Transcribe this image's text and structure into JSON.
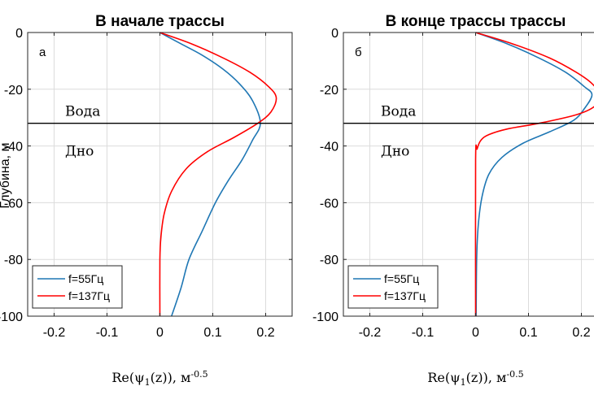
{
  "ylabel": "Глубина, м",
  "chart_data": [
    {
      "type": "line",
      "title": "В начале трассы",
      "panel_label": "а",
      "xlabel": "Re(ψ1(z)), м-0.5",
      "xlabel_parts": {
        "base": "Re(ψ",
        "sub": "1",
        "mid": "(z)), м",
        "sup": "-0.5"
      },
      "xlim": [
        -0.25,
        0.25
      ],
      "ylim": [
        -100,
        0
      ],
      "x_ticks": [
        -0.2,
        -0.1,
        0,
        0.1,
        0.2
      ],
      "x_tick_labels": [
        "-0.2",
        "-0.1",
        "0",
        "0.1",
        "0.2"
      ],
      "y_ticks": [
        0,
        -20,
        -40,
        -60,
        -80,
        -100
      ],
      "y_tick_labels": [
        "0",
        "-20",
        "-40",
        "-60",
        "-80",
        "-100"
      ],
      "grid": true,
      "legend_position": "bottom-left",
      "boundary": {
        "depth": -32,
        "upper_label": "Вода",
        "lower_label": "Дно"
      },
      "series": [
        {
          "name": "f=55Гц",
          "color": "#1f77b4",
          "points": [
            [
              0,
              0
            ],
            [
              0.04,
              -4
            ],
            [
              0.08,
              -8
            ],
            [
              0.12,
              -13
            ],
            [
              0.15,
              -18
            ],
            [
              0.175,
              -24
            ],
            [
              0.19,
              -32
            ],
            [
              0.175,
              -38
            ],
            [
              0.155,
              -45
            ],
            [
              0.13,
              -52
            ],
            [
              0.105,
              -60
            ],
            [
              0.08,
              -70
            ],
            [
              0.055,
              -80
            ],
            [
              0.04,
              -90
            ],
            [
              0.022,
              -100
            ]
          ]
        },
        {
          "name": "f=137Гц",
          "color": "#ff0000",
          "points": [
            [
              0,
              0
            ],
            [
              0.06,
              -4
            ],
            [
              0.12,
              -9
            ],
            [
              0.17,
              -14
            ],
            [
              0.205,
              -19
            ],
            [
              0.22,
              -23
            ],
            [
              0.21,
              -28
            ],
            [
              0.185,
              -32
            ],
            [
              0.14,
              -37
            ],
            [
              0.09,
              -42
            ],
            [
              0.05,
              -48
            ],
            [
              0.022,
              -56
            ],
            [
              0.008,
              -64
            ],
            [
              0.002,
              -72
            ],
            [
              0,
              -80
            ],
            [
              0,
              -100
            ]
          ]
        }
      ]
    },
    {
      "type": "line",
      "title": "В конце трассы трассы",
      "panel_label": "б",
      "xlabel": "Re(ψ1(z)), м-0.5",
      "xlabel_parts": {
        "base": "Re(ψ",
        "sub": "1",
        "mid": "(z)), м",
        "sup": "-0.5"
      },
      "xlim": [
        -0.25,
        0.25
      ],
      "ylim": [
        -100,
        0
      ],
      "x_ticks": [
        -0.2,
        -0.1,
        0,
        0.1,
        0.2
      ],
      "x_tick_labels": [
        "-0.2",
        "-0.1",
        "0",
        "0.1",
        "0.2"
      ],
      "y_ticks": [
        0,
        -20,
        -40,
        -60,
        -80,
        -100
      ],
      "y_tick_labels": [
        "0",
        "-20",
        "-40",
        "-60",
        "-80",
        "-100"
      ],
      "grid": true,
      "legend_position": "bottom-left",
      "boundary": {
        "depth": -32,
        "upper_label": "Вода",
        "lower_label": "Дно"
      },
      "series": [
        {
          "name": "f=55Гц",
          "color": "#1f77b4",
          "points": [
            [
              0,
              0
            ],
            [
              0.06,
              -4
            ],
            [
              0.12,
              -9
            ],
            [
              0.17,
              -14
            ],
            [
              0.205,
              -19
            ],
            [
              0.22,
              -22
            ],
            [
              0.205,
              -27
            ],
            [
              0.185,
              -31
            ],
            [
              0.14,
              -35
            ],
            [
              0.09,
              -39
            ],
            [
              0.05,
              -44
            ],
            [
              0.025,
              -50
            ],
            [
              0.012,
              -58
            ],
            [
              0.005,
              -68
            ],
            [
              0.002,
              -80
            ],
            [
              0.001,
              -100
            ]
          ]
        },
        {
          "name": "f=137Гц",
          "color": "#ff0000",
          "points": [
            [
              0,
              0
            ],
            [
              0.07,
              -4
            ],
            [
              0.14,
              -9
            ],
            [
              0.19,
              -14
            ],
            [
              0.22,
              -18
            ],
            [
              0.235,
              -22
            ],
            [
              0.225,
              -26
            ],
            [
              0.19,
              -29
            ],
            [
              0.12,
              -32
            ],
            [
              0.06,
              -34
            ],
            [
              0.025,
              -36
            ],
            [
              0.01,
              -38
            ],
            [
              0.003,
              -41
            ],
            [
              0,
              -45
            ],
            [
              0,
              -100
            ]
          ]
        }
      ]
    }
  ]
}
